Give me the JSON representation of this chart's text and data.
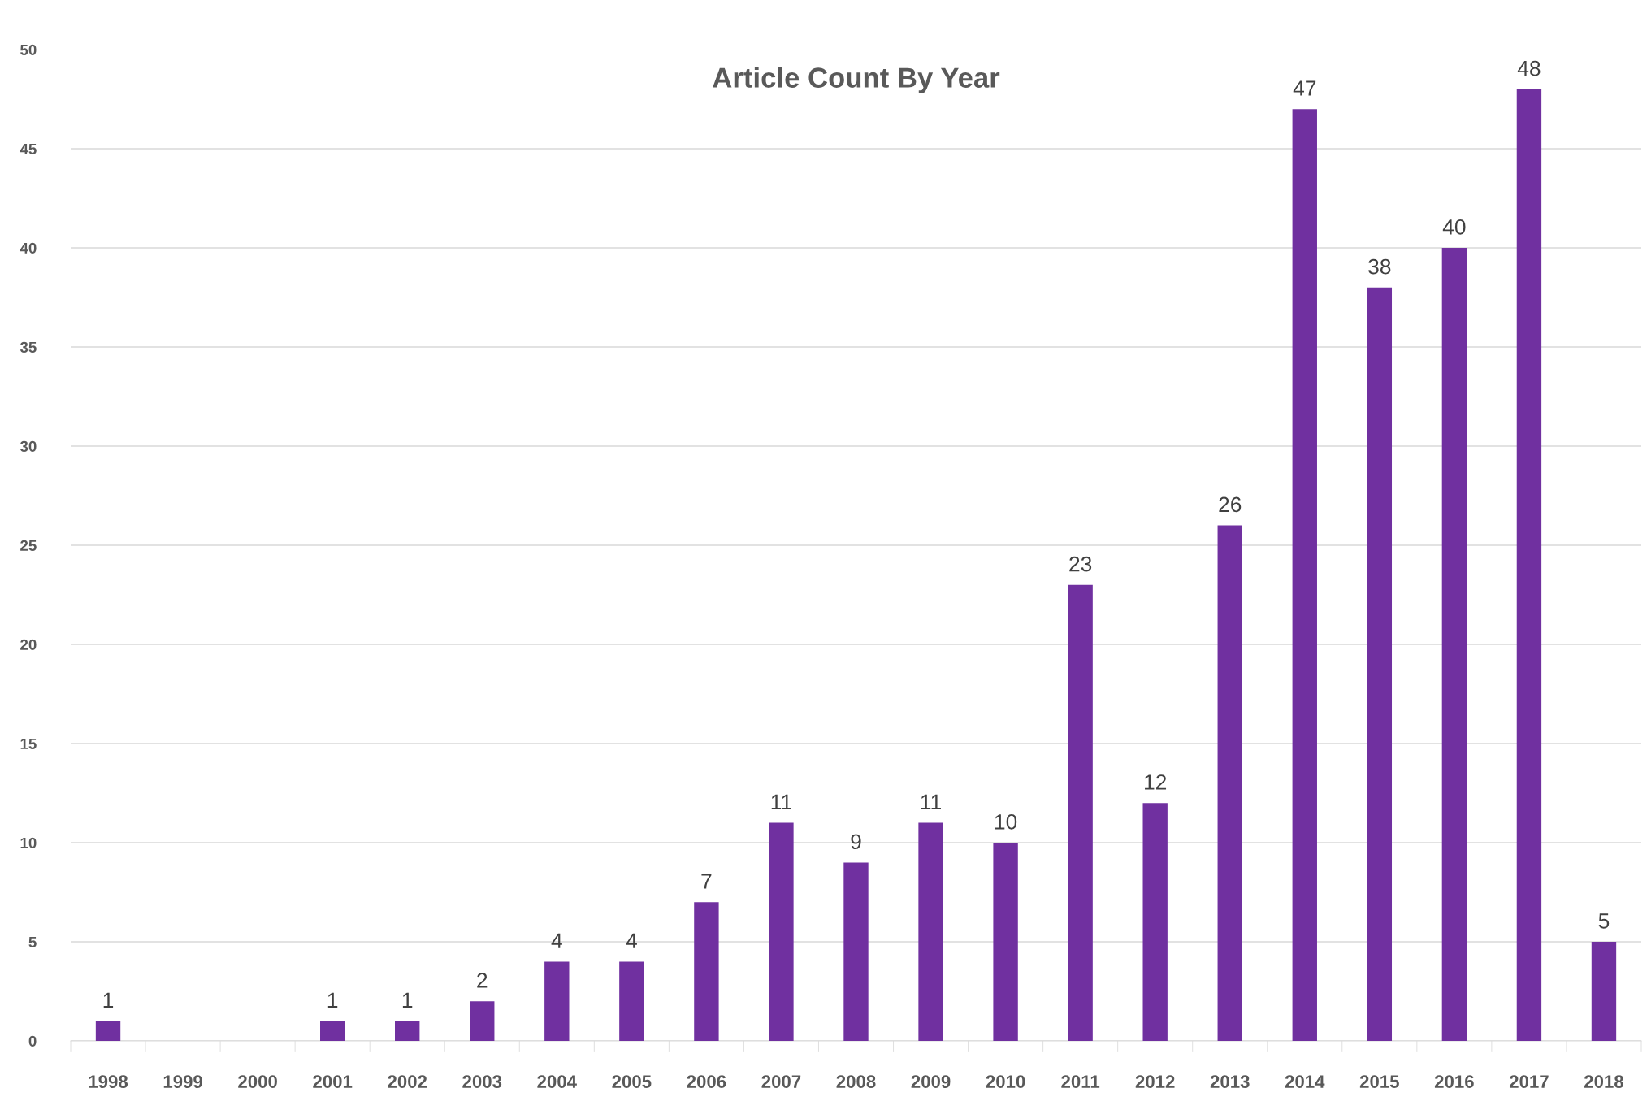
{
  "chart_data": {
    "type": "bar",
    "title": "Article Count By Year",
    "categories": [
      "1998",
      "1999",
      "2000",
      "2001",
      "2002",
      "2003",
      "2004",
      "2005",
      "2006",
      "2007",
      "2008",
      "2009",
      "2010",
      "2011",
      "2012",
      "2013",
      "2014",
      "2015",
      "2016",
      "2017",
      "2018"
    ],
    "values": [
      1,
      0,
      0,
      1,
      1,
      2,
      4,
      4,
      7,
      11,
      9,
      11,
      10,
      23,
      12,
      26,
      47,
      38,
      40,
      48,
      5
    ],
    "value_labels": [
      "1",
      null,
      null,
      "1",
      "1",
      "2",
      "4",
      "4",
      "7",
      "11",
      "9",
      "11",
      "10",
      "23",
      "12",
      "26",
      "47",
      "38",
      "40",
      "48",
      "5"
    ],
    "color": "#7030a0",
    "ylim": [
      0,
      50
    ],
    "yticks": [
      0,
      5,
      10,
      15,
      20,
      25,
      30,
      35,
      40,
      45,
      50
    ],
    "grid": "y"
  }
}
